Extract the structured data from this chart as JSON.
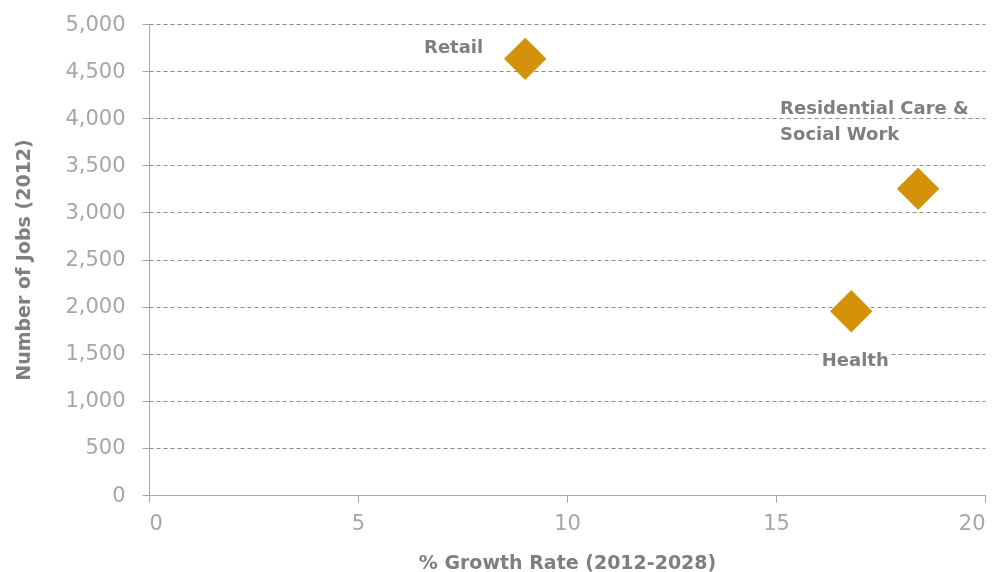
{
  "chart_data": {
    "type": "scatter",
    "xlabel": "% Growth Rate (2012-2028)",
    "ylabel": "Number of Jobs (2012)",
    "series": [
      {
        "name": "Retail",
        "color": "#d4920a",
        "x": [
          9.0
        ],
        "values": [
          4630
        ]
      },
      {
        "name": "Residential Care & Social Work",
        "color": "#d4920a",
        "x": [
          18.4
        ],
        "values": [
          3250
        ]
      },
      {
        "name": "Health",
        "color": "#d4920a",
        "x": [
          16.8
        ],
        "values": [
          1950
        ]
      }
    ],
    "xlim": [
      0,
      20
    ],
    "xticks": [
      0,
      5,
      10,
      15,
      20
    ],
    "ylim": [
      0,
      5000
    ],
    "yticks": [
      0,
      500,
      {
        "value": 1000,
        "label": "1,000"
      },
      {
        "value": 1500,
        "label": "1,500"
      },
      {
        "value": 2000,
        "label": "2,000"
      },
      {
        "value": 2500,
        "label": "2,500"
      },
      {
        "value": 3000,
        "label": "3,000"
      },
      {
        "value": 3500,
        "label": "3,500"
      },
      {
        "value": 4000,
        "label": "4,000"
      },
      {
        "value": 4500,
        "label": "4,500"
      },
      {
        "value": 5000,
        "label": "5,000"
      }
    ],
    "grid": "y",
    "marker": "diamond"
  }
}
